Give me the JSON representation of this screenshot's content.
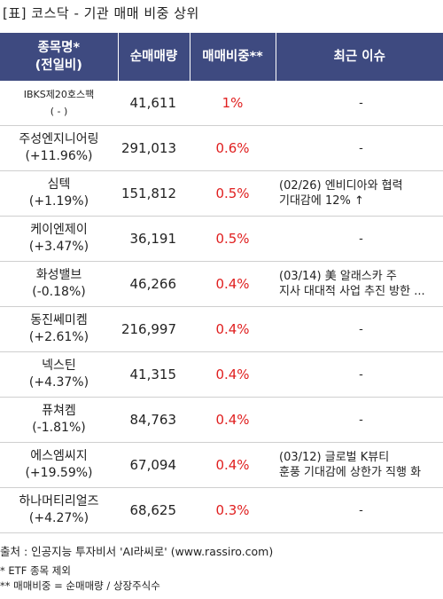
{
  "title": "[표] 코스닥 - 기관 매매 비중 상위",
  "headers": {
    "name": [
      "종목명*",
      "(전일비)"
    ],
    "volume": "순매매량",
    "ratio": "매매비중**",
    "issue": "최근 이슈"
  },
  "rows": [
    {
      "name": "IBKS제20호스팩",
      "change": "( - )",
      "volume": "41,611",
      "ratio": "1%",
      "issue": [
        "-"
      ]
    },
    {
      "name": "주성엔지니어링",
      "change": "(+11.96%)",
      "volume": "291,013",
      "ratio": "0.6%",
      "issue": [
        "-"
      ]
    },
    {
      "name": "심텍",
      "change": "(+1.19%)",
      "volume": "151,812",
      "ratio": "0.5%",
      "issue": [
        "(02/26) 엔비디아와 협력",
        " 기대감에 12% ↑"
      ]
    },
    {
      "name": "케이엔제이",
      "change": "(+3.47%)",
      "volume": "36,191",
      "ratio": "0.5%",
      "issue": [
        "-"
      ]
    },
    {
      "name": "화성밸브",
      "change": "(-0.18%)",
      "volume": "46,266",
      "ratio": "0.4%",
      "issue": [
        "(03/14) 美 알래스카 주",
        "지사 대대적 사업 추진 방한 ..."
      ]
    },
    {
      "name": "동진쎄미켐",
      "change": "(+2.61%)",
      "volume": "216,997",
      "ratio": "0.4%",
      "issue": [
        "-"
      ]
    },
    {
      "name": "넥스틴",
      "change": "(+4.37%)",
      "volume": "41,315",
      "ratio": "0.4%",
      "issue": [
        "-"
      ]
    },
    {
      "name": "퓨쳐켐",
      "change": "(-1.81%)",
      "volume": "84,763",
      "ratio": "0.4%",
      "issue": [
        "-"
      ]
    },
    {
      "name": "에스엠씨지",
      "change": "(+19.59%)",
      "volume": "67,094",
      "ratio": "0.4%",
      "issue": [
        "(03/12) 글로벌 K뷰티",
        "훈풍 기대감에 상한가 직행 화"
      ]
    },
    {
      "name": "하나머티리얼즈",
      "change": "(+4.27%)",
      "volume": "68,625",
      "ratio": "0.3%",
      "issue": [
        "-"
      ]
    }
  ],
  "footer": {
    "source": "출처 : 인공지능 투자비서 'AI라씨로' (www.rassiro.com)",
    "note1": "* ETF 종목 제외",
    "note2": "** 매매비중 = 순매매량 / 상장주식수"
  },
  "colors": {
    "header_bg": "#3e4a80",
    "ratio_text": "#e02020"
  }
}
